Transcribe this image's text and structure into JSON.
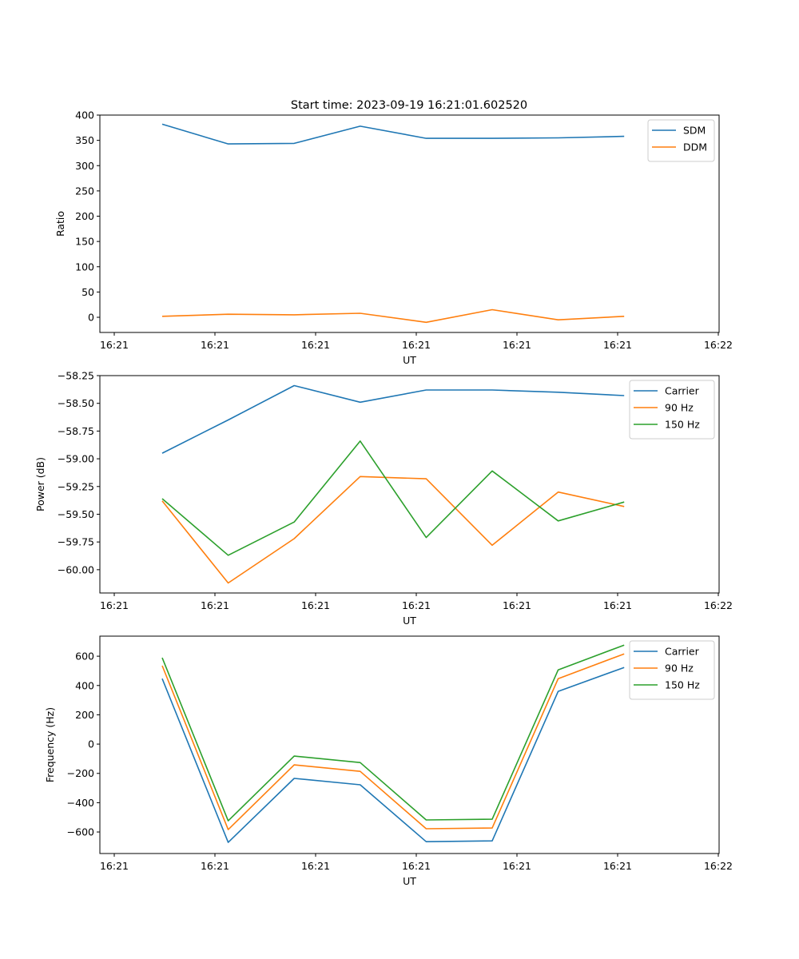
{
  "figure_title": "Start time: 2023-09-19 16:21:01.602520",
  "chart_data": [
    {
      "type": "line",
      "title": "Start time: 2023-09-19 16:21:01.602520",
      "xlabel": "UT",
      "ylabel": "Ratio",
      "x_ticks": [
        "16:21",
        "16:21",
        "16:21",
        "16:21",
        "16:21",
        "16:21",
        "16:22"
      ],
      "y_ticks": [
        0,
        50,
        100,
        150,
        200,
        250,
        300,
        350,
        400
      ],
      "y_tick_labels": [
        "0",
        "50",
        "100",
        "150",
        "200",
        "250",
        "300",
        "350",
        "400"
      ],
      "ylim": [
        -30,
        400
      ],
      "x_index": [
        0,
        1,
        2,
        3,
        4,
        5,
        6,
        7
      ],
      "legend": "top-right",
      "grid": false,
      "series": [
        {
          "name": "SDM",
          "color": "#1f77b4",
          "values": [
            382,
            343,
            344,
            378,
            354,
            354,
            355,
            358
          ]
        },
        {
          "name": "DDM",
          "color": "#ff7f0e",
          "values": [
            2,
            6,
            5,
            8,
            -10,
            15,
            -5,
            2
          ]
        }
      ]
    },
    {
      "type": "line",
      "title": "",
      "xlabel": "UT",
      "ylabel": "Power (dB)",
      "x_ticks": [
        "16:21",
        "16:21",
        "16:21",
        "16:21",
        "16:21",
        "16:21",
        "16:22"
      ],
      "y_ticks": [
        -60.0,
        -59.75,
        -59.5,
        -59.25,
        -59.0,
        -58.75,
        -58.5,
        -58.25
      ],
      "y_tick_labels": [
        "−60.00",
        "−59.75",
        "−59.50",
        "−59.25",
        "−59.00",
        "−58.75",
        "−58.50",
        "−58.25"
      ],
      "ylim": [
        -60.21,
        -58.25
      ],
      "x_index": [
        0,
        1,
        2,
        3,
        4,
        5,
        6,
        7
      ],
      "legend": "top-right",
      "grid": false,
      "series": [
        {
          "name": "Carrier",
          "color": "#1f77b4",
          "values": [
            -58.95,
            -58.65,
            -58.34,
            -58.49,
            -58.38,
            -58.38,
            -58.4,
            -58.43
          ]
        },
        {
          "name": "90 Hz",
          "color": "#ff7f0e",
          "values": [
            -59.38,
            -60.12,
            -59.72,
            -59.16,
            -59.18,
            -59.78,
            -59.3,
            -59.43
          ]
        },
        {
          "name": "150 Hz",
          "color": "#2ca02c",
          "values": [
            -59.36,
            -59.87,
            -59.57,
            -58.84,
            -59.71,
            -59.11,
            -59.56,
            -59.39
          ]
        }
      ]
    },
    {
      "type": "line",
      "title": "",
      "xlabel": "UT",
      "ylabel": "Frequency (Hz)",
      "x_ticks": [
        "16:21",
        "16:21",
        "16:21",
        "16:21",
        "16:21",
        "16:21",
        "16:22"
      ],
      "y_ticks": [
        -600,
        -400,
        -200,
        0,
        200,
        400,
        600
      ],
      "y_tick_labels": [
        "−600",
        "−400",
        "−200",
        "0",
        "200",
        "400",
        "600"
      ],
      "ylim": [
        -747,
        737
      ],
      "x_index": [
        0,
        1,
        2,
        3,
        4,
        5,
        6,
        7
      ],
      "legend": "top-right",
      "grid": false,
      "series": [
        {
          "name": "Carrier",
          "color": "#1f77b4",
          "values": [
            447,
            -671,
            -234,
            -278,
            -666,
            -661,
            360,
            523
          ]
        },
        {
          "name": "90 Hz",
          "color": "#ff7f0e",
          "values": [
            535,
            -584,
            -142,
            -186,
            -578,
            -573,
            447,
            616
          ]
        },
        {
          "name": "150 Hz",
          "color": "#2ca02c",
          "values": [
            589,
            -524,
            -82,
            -126,
            -518,
            -513,
            507,
            676
          ]
        }
      ]
    }
  ]
}
